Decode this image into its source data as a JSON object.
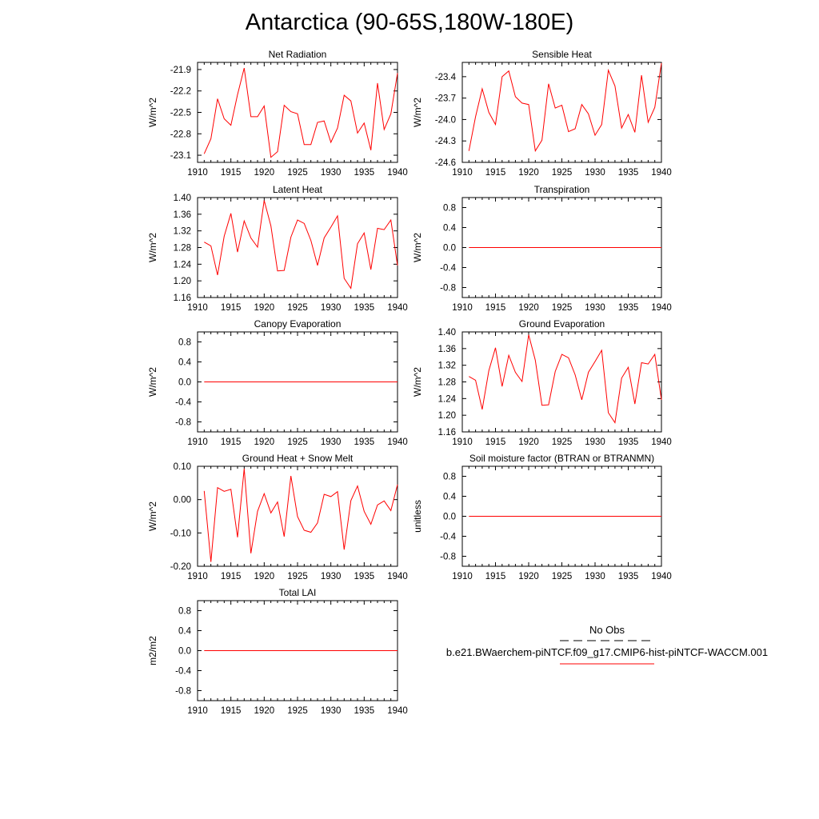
{
  "page": {
    "title": "Antarctica (90-65S,180W-180E)"
  },
  "legend": {
    "obs_label": "No Obs",
    "model_label": "b.e21.BWaerchem-piNTCF.f09_g17.CMIP6-hist-piNTCF-WACCM.001",
    "obs_color": "#000000",
    "model_color": "#ff0000"
  },
  "chart_data": [
    {
      "type": "line",
      "title": "Net Radiation",
      "ylabel": "W/m^2",
      "xlim": [
        1910,
        1940
      ],
      "ylim": [
        -23.2,
        -21.8
      ],
      "yticks": [
        -23.1,
        -22.8,
        -22.5,
        -22.2,
        -21.9
      ],
      "yticklabels": [
        "-23.1",
        "-22.8",
        "-22.5",
        "-22.2",
        "-21.9"
      ],
      "xticks": [
        1910,
        1915,
        1920,
        1925,
        1930,
        1935,
        1940
      ],
      "series": [
        {
          "color": "#ff0000",
          "x": [
            1911,
            1912,
            1913,
            1914,
            1915,
            1916,
            1917,
            1918,
            1919,
            1920,
            1921,
            1922,
            1923,
            1924,
            1925,
            1926,
            1927,
            1928,
            1929,
            1930,
            1931,
            1932,
            1933,
            1934,
            1935,
            1936,
            1937,
            1938,
            1939,
            1940
          ],
          "y": [
            -23.08,
            -22.87,
            -22.31,
            -22.59,
            -22.68,
            -22.25,
            -21.88,
            -22.56,
            -22.56,
            -22.41,
            -23.13,
            -23.05,
            -22.4,
            -22.49,
            -22.52,
            -22.95,
            -22.95,
            -22.64,
            -22.62,
            -22.92,
            -22.72,
            -22.26,
            -22.34,
            -22.79,
            -22.65,
            -23.03,
            -22.09,
            -22.74,
            -22.52,
            -21.95
          ]
        }
      ]
    },
    {
      "type": "line",
      "title": "Sensible Heat",
      "ylabel": "W/m^2",
      "xlim": [
        1910,
        1940
      ],
      "ylim": [
        -24.6,
        -23.2
      ],
      "yticks": [
        -24.6,
        -24.3,
        -24.0,
        -23.7,
        -23.4
      ],
      "yticklabels": [
        "-24.6",
        "-24.3",
        "-24.0",
        "-23.7",
        "-23.4"
      ],
      "xticks": [
        1910,
        1915,
        1920,
        1925,
        1930,
        1935,
        1940
      ],
      "series": [
        {
          "color": "#ff0000",
          "x": [
            1911,
            1912,
            1913,
            1914,
            1915,
            1916,
            1917,
            1918,
            1919,
            1920,
            1921,
            1922,
            1923,
            1924,
            1925,
            1926,
            1927,
            1928,
            1929,
            1930,
            1931,
            1932,
            1933,
            1934,
            1935,
            1936,
            1937,
            1938,
            1939,
            1940
          ],
          "y": [
            -24.44,
            -23.96,
            -23.57,
            -23.9,
            -24.07,
            -23.4,
            -23.32,
            -23.68,
            -23.77,
            -23.79,
            -24.44,
            -24.29,
            -23.5,
            -23.84,
            -23.8,
            -24.17,
            -24.13,
            -23.79,
            -23.92,
            -24.22,
            -24.07,
            -23.31,
            -23.53,
            -24.12,
            -23.93,
            -24.18,
            -23.38,
            -24.04,
            -23.83,
            -23.21
          ]
        }
      ]
    },
    {
      "type": "line",
      "title": "Latent Heat",
      "ylabel": "W/m^2",
      "xlim": [
        1910,
        1940
      ],
      "ylim": [
        1.16,
        1.4
      ],
      "yticks": [
        1.16,
        1.2,
        1.24,
        1.28,
        1.32,
        1.36,
        1.4
      ],
      "yticklabels": [
        "1.16",
        "1.20",
        "1.24",
        "1.28",
        "1.32",
        "1.36",
        "1.40"
      ],
      "xticks": [
        1910,
        1915,
        1920,
        1925,
        1930,
        1935,
        1940
      ],
      "series": [
        {
          "color": "#ff0000",
          "x": [
            1911,
            1912,
            1913,
            1914,
            1915,
            1916,
            1917,
            1918,
            1919,
            1920,
            1921,
            1922,
            1923,
            1924,
            1925,
            1926,
            1927,
            1928,
            1929,
            1930,
            1931,
            1932,
            1933,
            1934,
            1935,
            1936,
            1937,
            1938,
            1939,
            1940
          ],
          "y": [
            1.293,
            1.284,
            1.214,
            1.307,
            1.362,
            1.269,
            1.344,
            1.303,
            1.281,
            1.393,
            1.332,
            1.224,
            1.225,
            1.305,
            1.346,
            1.338,
            1.297,
            1.237,
            1.303,
            1.329,
            1.356,
            1.206,
            1.182,
            1.289,
            1.315,
            1.227,
            1.326,
            1.323,
            1.346,
            1.237
          ]
        }
      ]
    },
    {
      "type": "line",
      "title": "Transpiration",
      "ylabel": "W/m^2",
      "xlim": [
        1910,
        1940
      ],
      "ylim": [
        -1.0,
        1.0
      ],
      "yticks": [
        -0.8,
        -0.4,
        0.0,
        0.4,
        0.8
      ],
      "yticklabels": [
        "-0.8",
        "-0.4",
        "0.0",
        "0.4",
        "0.8"
      ],
      "xticks": [
        1910,
        1915,
        1920,
        1925,
        1930,
        1935,
        1940
      ],
      "series": [
        {
          "color": "#ff0000",
          "x": [
            1911,
            1940
          ],
          "y": [
            0.0,
            0.0
          ]
        }
      ]
    },
    {
      "type": "line",
      "title": "Canopy Evaporation",
      "ylabel": "W/m^2",
      "xlim": [
        1910,
        1940
      ],
      "ylim": [
        -1.0,
        1.0
      ],
      "yticks": [
        -0.8,
        -0.4,
        0.0,
        0.4,
        0.8
      ],
      "yticklabels": [
        "-0.8",
        "-0.4",
        "0.0",
        "0.4",
        "0.8"
      ],
      "xticks": [
        1910,
        1915,
        1920,
        1925,
        1930,
        1935,
        1940
      ],
      "series": [
        {
          "color": "#ff0000",
          "x": [
            1911,
            1940
          ],
          "y": [
            0.0,
            0.0
          ]
        }
      ]
    },
    {
      "type": "line",
      "title": "Ground Evaporation",
      "ylabel": "W/m^2",
      "xlim": [
        1910,
        1940
      ],
      "ylim": [
        1.16,
        1.4
      ],
      "yticks": [
        1.16,
        1.2,
        1.24,
        1.28,
        1.32,
        1.36,
        1.4
      ],
      "yticklabels": [
        "1.16",
        "1.20",
        "1.24",
        "1.28",
        "1.32",
        "1.36",
        "1.40"
      ],
      "xticks": [
        1910,
        1915,
        1920,
        1925,
        1930,
        1935,
        1940
      ],
      "series": [
        {
          "color": "#ff0000",
          "x": [
            1911,
            1912,
            1913,
            1914,
            1915,
            1916,
            1917,
            1918,
            1919,
            1920,
            1921,
            1922,
            1923,
            1924,
            1925,
            1926,
            1927,
            1928,
            1929,
            1930,
            1931,
            1932,
            1933,
            1934,
            1935,
            1936,
            1937,
            1938,
            1939,
            1940
          ],
          "y": [
            1.293,
            1.284,
            1.214,
            1.307,
            1.362,
            1.269,
            1.344,
            1.303,
            1.281,
            1.393,
            1.332,
            1.224,
            1.225,
            1.305,
            1.346,
            1.338,
            1.297,
            1.237,
            1.303,
            1.329,
            1.356,
            1.206,
            1.182,
            1.289,
            1.315,
            1.227,
            1.326,
            1.323,
            1.346,
            1.237
          ]
        }
      ]
    },
    {
      "type": "line",
      "title": "Ground Heat + Snow Melt",
      "ylabel": "W/m^2",
      "xlim": [
        1910,
        1940
      ],
      "ylim": [
        -0.2,
        0.1
      ],
      "yticks": [
        -0.2,
        -0.1,
        0.0,
        0.1
      ],
      "yticklabels": [
        "-0.20",
        "-0.10",
        "0.00",
        "0.10"
      ],
      "xticks": [
        1910,
        1915,
        1920,
        1925,
        1930,
        1935,
        1940
      ],
      "series": [
        {
          "color": "#ff0000",
          "x": [
            1911,
            1912,
            1913,
            1914,
            1915,
            1916,
            1917,
            1918,
            1919,
            1920,
            1921,
            1922,
            1923,
            1924,
            1925,
            1926,
            1927,
            1928,
            1929,
            1930,
            1931,
            1932,
            1933,
            1934,
            1935,
            1936,
            1937,
            1938,
            1939,
            1940
          ],
          "y": [
            0.026,
            -0.187,
            0.036,
            0.025,
            0.031,
            -0.113,
            0.093,
            -0.161,
            -0.035,
            0.018,
            -0.04,
            -0.007,
            -0.111,
            0.071,
            -0.051,
            -0.092,
            -0.098,
            -0.07,
            0.016,
            0.009,
            0.024,
            -0.15,
            -0.003,
            0.041,
            -0.035,
            -0.074,
            -0.016,
            -0.004,
            -0.033,
            0.045
          ]
        }
      ]
    },
    {
      "type": "line",
      "title": "Soil moisture factor (BTRAN or BTRANMN)",
      "ylabel": "unitless",
      "xlim": [
        1910,
        1940
      ],
      "ylim": [
        -1.0,
        1.0
      ],
      "yticks": [
        -0.8,
        -0.4,
        0.0,
        0.4,
        0.8
      ],
      "yticklabels": [
        "-0.8",
        "-0.4",
        "0.0",
        "0.4",
        "0.8"
      ],
      "xticks": [
        1910,
        1915,
        1920,
        1925,
        1930,
        1935,
        1940
      ],
      "series": [
        {
          "color": "#ff0000",
          "x": [
            1911,
            1940
          ],
          "y": [
            0.0,
            0.0
          ]
        }
      ]
    },
    {
      "type": "line",
      "title": "Total LAI",
      "ylabel": "m2/m2",
      "xlim": [
        1910,
        1940
      ],
      "ylim": [
        -1.0,
        1.0
      ],
      "yticks": [
        -0.8,
        -0.4,
        0.0,
        0.4,
        0.8
      ],
      "yticklabels": [
        "-0.8",
        "-0.4",
        "0.0",
        "0.4",
        "0.8"
      ],
      "xticks": [
        1910,
        1915,
        1920,
        1925,
        1930,
        1935,
        1940
      ],
      "series": [
        {
          "color": "#ff0000",
          "x": [
            1911,
            1940
          ],
          "y": [
            0.0,
            0.0
          ]
        }
      ]
    }
  ]
}
